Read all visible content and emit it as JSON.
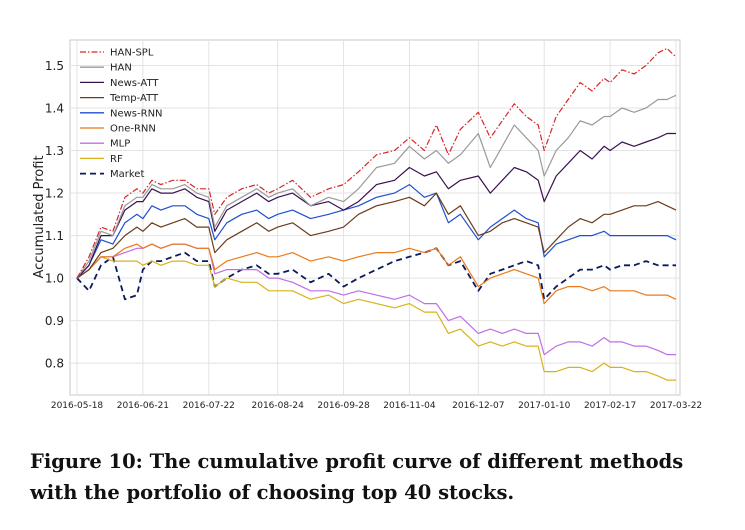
{
  "caption": "Figure 10: The cumulative profit curve of different methods with the portfolio of choosing top 40 stocks.",
  "chart_data": {
    "type": "line",
    "title": "",
    "xlabel": "",
    "ylabel": "Accumulated Profit",
    "ylim": [
      0.725,
      1.56
    ],
    "yticks": [
      0.8,
      0.9,
      1.0,
      1.1,
      1.2,
      1.3,
      1.4,
      1.5
    ],
    "grid": true,
    "legend_position": "top-left",
    "x_tick_labels": [
      "2016-05-18",
      "2016-06-21",
      "2016-07-22",
      "2016-08-24",
      "2016-09-28",
      "2016-11-04",
      "2016-12-07",
      "2017-01-10",
      "2017-02-17",
      "2017-03-22"
    ],
    "x_tick_index": [
      0,
      22,
      44,
      67,
      89,
      111,
      134,
      156,
      178,
      200
    ],
    "x_index_range": [
      0,
      200
    ],
    "series": [
      {
        "name": "HAN-SPL",
        "color": "#d62728",
        "dash": "6,2,1.5,2",
        "x": [
          0,
          4,
          8,
          12,
          16,
          20,
          22,
          25,
          28,
          32,
          36,
          40,
          44,
          46,
          50,
          55,
          60,
          64,
          67,
          72,
          78,
          84,
          89,
          94,
          100,
          106,
          111,
          116,
          120,
          124,
          128,
          134,
          138,
          142,
          146,
          150,
          154,
          156,
          160,
          164,
          168,
          172,
          176,
          178,
          182,
          186,
          190,
          194,
          197,
          200
        ],
        "values": [
          1.0,
          1.05,
          1.12,
          1.11,
          1.19,
          1.21,
          1.2,
          1.23,
          1.22,
          1.23,
          1.23,
          1.21,
          1.21,
          1.15,
          1.19,
          1.21,
          1.22,
          1.2,
          1.21,
          1.23,
          1.19,
          1.21,
          1.22,
          1.25,
          1.29,
          1.3,
          1.33,
          1.3,
          1.36,
          1.29,
          1.35,
          1.39,
          1.33,
          1.37,
          1.41,
          1.38,
          1.36,
          1.3,
          1.38,
          1.42,
          1.46,
          1.44,
          1.47,
          1.46,
          1.49,
          1.48,
          1.5,
          1.53,
          1.54,
          1.52
        ]
      },
      {
        "name": "HAN",
        "color": "#9a9a9a",
        "dash": "",
        "x": [
          0,
          4,
          8,
          12,
          16,
          20,
          22,
          25,
          28,
          32,
          36,
          40,
          44,
          46,
          50,
          55,
          60,
          64,
          67,
          72,
          78,
          84,
          89,
          94,
          100,
          106,
          111,
          116,
          120,
          124,
          128,
          134,
          138,
          142,
          146,
          150,
          154,
          156,
          160,
          164,
          168,
          172,
          176,
          178,
          182,
          186,
          190,
          194,
          197,
          200
        ],
        "values": [
          1.0,
          1.04,
          1.11,
          1.1,
          1.17,
          1.19,
          1.19,
          1.22,
          1.21,
          1.21,
          1.22,
          1.2,
          1.19,
          1.12,
          1.17,
          1.19,
          1.21,
          1.19,
          1.2,
          1.21,
          1.17,
          1.19,
          1.18,
          1.21,
          1.26,
          1.27,
          1.31,
          1.28,
          1.3,
          1.27,
          1.29,
          1.34,
          1.26,
          1.31,
          1.36,
          1.33,
          1.3,
          1.24,
          1.3,
          1.33,
          1.37,
          1.36,
          1.38,
          1.38,
          1.4,
          1.39,
          1.4,
          1.42,
          1.42,
          1.43
        ]
      },
      {
        "name": "News-ATT",
        "color": "#3b1051",
        "dash": "",
        "x": [
          0,
          4,
          8,
          12,
          16,
          20,
          22,
          25,
          28,
          32,
          36,
          40,
          44,
          46,
          50,
          55,
          60,
          64,
          67,
          72,
          78,
          84,
          89,
          94,
          100,
          106,
          111,
          116,
          120,
          124,
          128,
          134,
          138,
          142,
          146,
          150,
          154,
          156,
          160,
          164,
          168,
          172,
          176,
          178,
          182,
          186,
          190,
          194,
          197,
          200
        ],
        "values": [
          1.0,
          1.03,
          1.1,
          1.1,
          1.16,
          1.18,
          1.18,
          1.21,
          1.2,
          1.2,
          1.21,
          1.19,
          1.18,
          1.11,
          1.16,
          1.18,
          1.2,
          1.18,
          1.19,
          1.2,
          1.17,
          1.18,
          1.16,
          1.18,
          1.22,
          1.23,
          1.26,
          1.24,
          1.25,
          1.21,
          1.23,
          1.24,
          1.2,
          1.23,
          1.26,
          1.25,
          1.23,
          1.18,
          1.24,
          1.27,
          1.3,
          1.28,
          1.31,
          1.3,
          1.32,
          1.31,
          1.32,
          1.33,
          1.34,
          1.34
        ]
      },
      {
        "name": "Temp-ATT",
        "color": "#6b3c1e",
        "dash": "",
        "x": [
          0,
          4,
          8,
          12,
          16,
          20,
          22,
          25,
          28,
          32,
          36,
          40,
          44,
          46,
          50,
          55,
          60,
          64,
          67,
          72,
          78,
          84,
          89,
          94,
          100,
          106,
          111,
          116,
          120,
          124,
          128,
          134,
          138,
          142,
          146,
          150,
          154,
          156,
          160,
          164,
          168,
          172,
          176,
          178,
          182,
          186,
          190,
          194,
          197,
          200
        ],
        "values": [
          1.0,
          1.02,
          1.06,
          1.07,
          1.1,
          1.12,
          1.11,
          1.13,
          1.12,
          1.13,
          1.14,
          1.12,
          1.12,
          1.06,
          1.09,
          1.11,
          1.13,
          1.11,
          1.12,
          1.13,
          1.1,
          1.11,
          1.12,
          1.15,
          1.17,
          1.18,
          1.19,
          1.17,
          1.2,
          1.15,
          1.17,
          1.1,
          1.11,
          1.13,
          1.14,
          1.13,
          1.12,
          1.06,
          1.09,
          1.12,
          1.14,
          1.13,
          1.15,
          1.15,
          1.16,
          1.17,
          1.17,
          1.18,
          1.17,
          1.16
        ]
      },
      {
        "name": "News-RNN",
        "color": "#1f4fd1",
        "dash": "",
        "x": [
          0,
          4,
          8,
          12,
          16,
          20,
          22,
          25,
          28,
          32,
          36,
          40,
          44,
          46,
          50,
          55,
          60,
          64,
          67,
          72,
          78,
          84,
          89,
          94,
          100,
          106,
          111,
          116,
          120,
          124,
          128,
          134,
          138,
          142,
          146,
          150,
          154,
          156,
          160,
          164,
          168,
          172,
          176,
          178,
          182,
          186,
          190,
          194,
          197,
          200
        ],
        "values": [
          1.0,
          1.03,
          1.09,
          1.08,
          1.13,
          1.15,
          1.14,
          1.17,
          1.16,
          1.17,
          1.17,
          1.15,
          1.14,
          1.09,
          1.13,
          1.15,
          1.16,
          1.14,
          1.15,
          1.16,
          1.14,
          1.15,
          1.16,
          1.17,
          1.19,
          1.2,
          1.22,
          1.19,
          1.2,
          1.13,
          1.15,
          1.09,
          1.12,
          1.14,
          1.16,
          1.14,
          1.13,
          1.05,
          1.08,
          1.09,
          1.1,
          1.1,
          1.11,
          1.1,
          1.1,
          1.1,
          1.1,
          1.1,
          1.1,
          1.09
        ]
      },
      {
        "name": "One-RNN",
        "color": "#ea7a1a",
        "dash": "",
        "x": [
          0,
          4,
          8,
          12,
          16,
          20,
          22,
          25,
          28,
          32,
          36,
          40,
          44,
          46,
          50,
          55,
          60,
          64,
          67,
          72,
          78,
          84,
          89,
          94,
          100,
          106,
          111,
          116,
          120,
          124,
          128,
          134,
          138,
          142,
          146,
          150,
          154,
          156,
          160,
          164,
          168,
          172,
          176,
          178,
          182,
          186,
          190,
          194,
          197,
          200
        ],
        "values": [
          1.0,
          1.02,
          1.05,
          1.05,
          1.07,
          1.08,
          1.07,
          1.08,
          1.07,
          1.08,
          1.08,
          1.07,
          1.07,
          1.02,
          1.04,
          1.05,
          1.06,
          1.05,
          1.05,
          1.06,
          1.04,
          1.05,
          1.04,
          1.05,
          1.06,
          1.06,
          1.07,
          1.06,
          1.07,
          1.03,
          1.05,
          0.98,
          1.0,
          1.01,
          1.02,
          1.01,
          1.0,
          0.94,
          0.97,
          0.98,
          0.98,
          0.97,
          0.98,
          0.97,
          0.97,
          0.97,
          0.96,
          0.96,
          0.96,
          0.95
        ]
      },
      {
        "name": "MLP",
        "color": "#c06ee8",
        "dash": "",
        "x": [
          0,
          4,
          8,
          12,
          16,
          20,
          22,
          25,
          28,
          32,
          36,
          40,
          44,
          46,
          50,
          55,
          60,
          64,
          67,
          72,
          78,
          84,
          89,
          94,
          100,
          106,
          111,
          116,
          120,
          124,
          128,
          134,
          138,
          142,
          146,
          150,
          154,
          156,
          160,
          164,
          168,
          172,
          176,
          178,
          182,
          186,
          190,
          194,
          197,
          200
        ],
        "values": [
          1.0,
          1.02,
          1.05,
          1.05,
          1.06,
          1.07,
          1.07,
          1.08,
          1.07,
          1.08,
          1.08,
          1.07,
          1.07,
          1.01,
          1.02,
          1.02,
          1.02,
          1.0,
          1.0,
          0.99,
          0.97,
          0.97,
          0.96,
          0.97,
          0.96,
          0.95,
          0.96,
          0.94,
          0.94,
          0.9,
          0.91,
          0.87,
          0.88,
          0.87,
          0.88,
          0.87,
          0.87,
          0.82,
          0.84,
          0.85,
          0.85,
          0.84,
          0.86,
          0.85,
          0.85,
          0.84,
          0.84,
          0.83,
          0.82,
          0.82
        ]
      },
      {
        "name": "RF",
        "color": "#d8b21c",
        "dash": "",
        "x": [
          0,
          4,
          8,
          12,
          16,
          20,
          22,
          25,
          28,
          32,
          36,
          40,
          44,
          46,
          50,
          55,
          60,
          64,
          67,
          72,
          78,
          84,
          89,
          94,
          100,
          106,
          111,
          116,
          120,
          124,
          128,
          134,
          138,
          142,
          146,
          150,
          154,
          156,
          160,
          164,
          168,
          172,
          176,
          178,
          182,
          186,
          190,
          194,
          197,
          200
        ],
        "values": [
          1.0,
          1.02,
          1.05,
          1.04,
          1.04,
          1.04,
          1.03,
          1.04,
          1.03,
          1.04,
          1.04,
          1.03,
          1.03,
          0.98,
          1.0,
          0.99,
          0.99,
          0.97,
          0.97,
          0.97,
          0.95,
          0.96,
          0.94,
          0.95,
          0.94,
          0.93,
          0.94,
          0.92,
          0.92,
          0.87,
          0.88,
          0.84,
          0.85,
          0.84,
          0.85,
          0.84,
          0.84,
          0.78,
          0.78,
          0.79,
          0.79,
          0.78,
          0.8,
          0.79,
          0.79,
          0.78,
          0.78,
          0.77,
          0.76,
          0.76
        ]
      },
      {
        "name": "Market",
        "color": "#0a1a5c",
        "dash": "6,4",
        "x": [
          0,
          4,
          8,
          12,
          16,
          20,
          22,
          25,
          28,
          32,
          36,
          40,
          44,
          46,
          50,
          55,
          60,
          64,
          67,
          72,
          78,
          84,
          89,
          94,
          100,
          106,
          111,
          116,
          120,
          124,
          128,
          134,
          138,
          142,
          146,
          150,
          154,
          156,
          160,
          164,
          168,
          172,
          176,
          178,
          182,
          186,
          190,
          194,
          197,
          200
        ],
        "values": [
          1.0,
          0.97,
          1.03,
          1.05,
          0.95,
          0.96,
          1.02,
          1.04,
          1.04,
          1.05,
          1.06,
          1.04,
          1.04,
          0.98,
          1.0,
          1.02,
          1.03,
          1.01,
          1.01,
          1.02,
          0.99,
          1.01,
          0.98,
          1.0,
          1.02,
          1.04,
          1.05,
          1.06,
          1.07,
          1.03,
          1.04,
          0.97,
          1.01,
          1.02,
          1.03,
          1.04,
          1.03,
          0.95,
          0.98,
          1.0,
          1.02,
          1.02,
          1.03,
          1.02,
          1.03,
          1.03,
          1.04,
          1.03,
          1.03,
          1.03
        ]
      }
    ]
  }
}
